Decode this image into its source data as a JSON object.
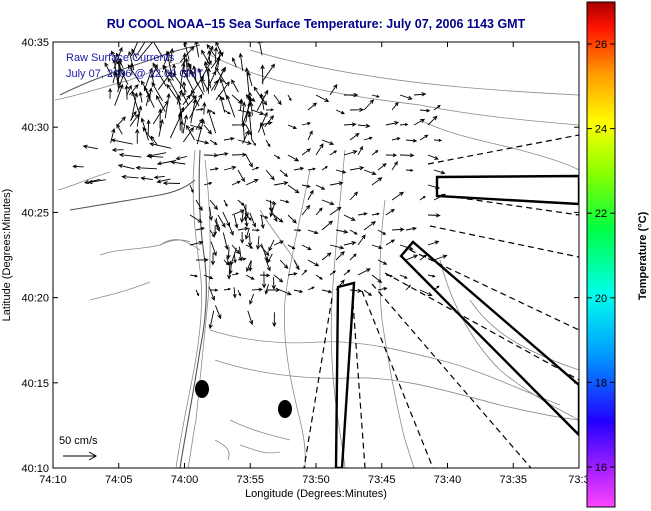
{
  "title": "RU COOL  NOAA–15  Sea Surface Temperature:  July 07, 2006 1143 GMT",
  "map": {
    "xlabel": "Longitude (Degrees:Minutes)",
    "ylabel": "Latitude (Degrees:Minutes)",
    "x_ticks": [
      "74:10",
      "74:05",
      "74:00",
      "73:55",
      "73:50",
      "73:45",
      "73:40",
      "73:35",
      "73:3"
    ],
    "y_ticks": [
      "40:35",
      "40:30",
      "40:25",
      "40:20",
      "40:15",
      "40:10"
    ],
    "legend_line1": "Raw Surface Currents",
    "legend_line2": "July 07, 2006 @ 12:00 GMT",
    "scale_label": "50 cm/s"
  },
  "colorbar": {
    "label": "Temperature (°C)",
    "ticks": [
      "26",
      "24",
      "22",
      "20",
      "18",
      "16"
    ]
  },
  "colors": {
    "title": "#00008b",
    "legend": "#1a1aa8"
  }
}
